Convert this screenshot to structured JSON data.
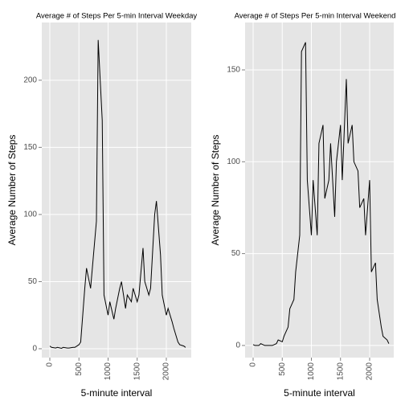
{
  "chart_data": [
    {
      "type": "line",
      "title": "Average # of Steps Per 5-min Interval Weekday",
      "x_label": "5-minute interval",
      "y_label": "Average Number of Steps",
      "x": [
        0,
        30,
        100,
        130,
        200,
        230,
        300,
        330,
        400,
        430,
        500,
        530,
        600,
        630,
        700,
        730,
        800,
        830,
        900,
        930,
        1000,
        1030,
        1100,
        1130,
        1200,
        1230,
        1300,
        1330,
        1400,
        1430,
        1500,
        1530,
        1600,
        1630,
        1700,
        1730,
        1800,
        1830,
        1900,
        1930,
        2000,
        2030,
        2100,
        2130,
        2200,
        2230,
        2300,
        2330
      ],
      "series": [
        {
          "name": "Weekday",
          "color": "#000000",
          "values": [
            2,
            1,
            0.5,
            1,
            0.3,
            1,
            0.5,
            0.5,
            1,
            1,
            3,
            5,
            45,
            60,
            45,
            60,
            95,
            230,
            170,
            40,
            25,
            35,
            22,
            30,
            45,
            50,
            30,
            40,
            35,
            45,
            35,
            40,
            75,
            50,
            40,
            45,
            100,
            110,
            70,
            40,
            25,
            30,
            20,
            15,
            5,
            3,
            2,
            1
          ]
        }
      ],
      "xlim": [
        -138,
        2428
      ],
      "xticks": [
        0,
        500,
        1000,
        1500,
        2000
      ],
      "ylim": [
        -6.6,
        243
      ],
      "yticks": [
        0,
        50,
        100,
        150,
        200
      ],
      "grid": true
    },
    {
      "type": "line",
      "title": "Average # of Steps Per 5-min Interval Weekend",
      "x_label": "5-minute interval",
      "y_label": "Average Number of Steps",
      "x": [
        0,
        30,
        100,
        130,
        200,
        230,
        300,
        330,
        400,
        430,
        500,
        530,
        600,
        630,
        700,
        730,
        800,
        830,
        900,
        930,
        1000,
        1030,
        1100,
        1130,
        1200,
        1230,
        1300,
        1330,
        1400,
        1430,
        1500,
        1530,
        1600,
        1630,
        1700,
        1730,
        1800,
        1830,
        1900,
        1930,
        2000,
        2030,
        2100,
        2130,
        2200,
        2230,
        2300,
        2330
      ],
      "series": [
        {
          "name": "Weekend",
          "color": "#000000",
          "values": [
            0.5,
            0,
            0,
            1,
            0,
            0,
            0,
            0,
            1,
            3,
            2,
            5,
            10,
            20,
            25,
            40,
            60,
            160,
            165,
            90,
            60,
            90,
            60,
            110,
            120,
            80,
            90,
            110,
            70,
            100,
            120,
            90,
            145,
            110,
            120,
            100,
            95,
            75,
            80,
            60,
            90,
            40,
            45,
            25,
            10,
            5,
            3,
            1
          ]
        }
      ],
      "xlim": [
        -138,
        2414
      ],
      "xticks": [
        0,
        500,
        1000,
        1500,
        2000
      ],
      "ylim": [
        -6.6,
        175.8
      ],
      "yticks": [
        0,
        50,
        100,
        150
      ],
      "grid": true
    }
  ]
}
